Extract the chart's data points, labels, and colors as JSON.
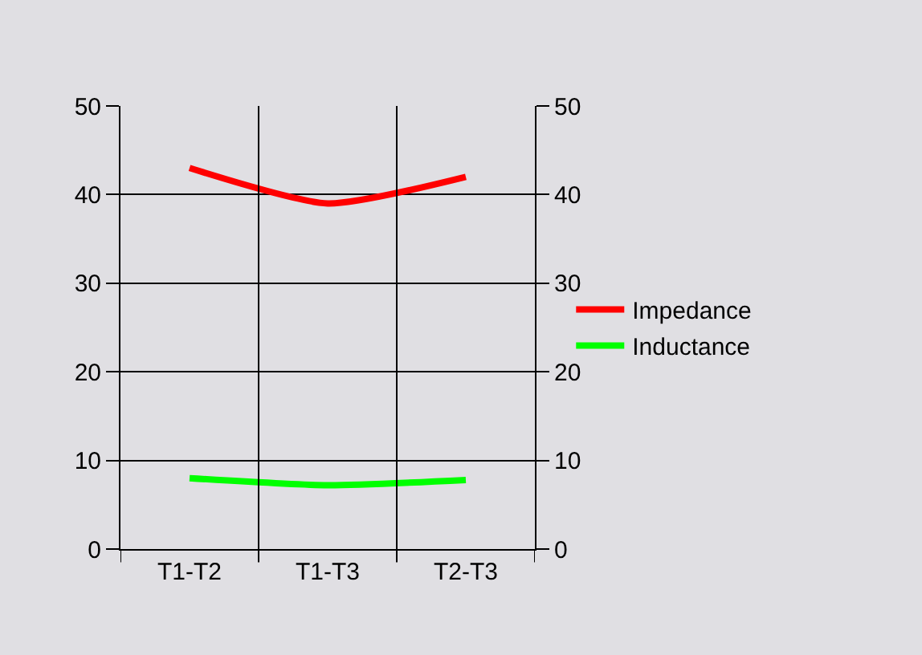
{
  "chart_data": {
    "type": "line",
    "categories": [
      "T1-T2",
      "T1-T3",
      "T2-T3"
    ],
    "series": [
      {
        "name": "Impedance",
        "color": "#ff0000",
        "values": [
          43,
          39,
          42
        ]
      },
      {
        "name": "Inductance",
        "color": "#00ff00",
        "values": [
          8,
          7.2,
          7.8
        ]
      }
    ],
    "ylim": [
      0,
      50
    ],
    "yticks": [
      0,
      10,
      20,
      30,
      40,
      50
    ],
    "y2lim": [
      0,
      50
    ],
    "y2ticks": [
      0,
      10,
      20,
      30,
      40,
      50
    ],
    "grid": true,
    "legend": "right",
    "marker": "none",
    "line_style": "solid"
  }
}
